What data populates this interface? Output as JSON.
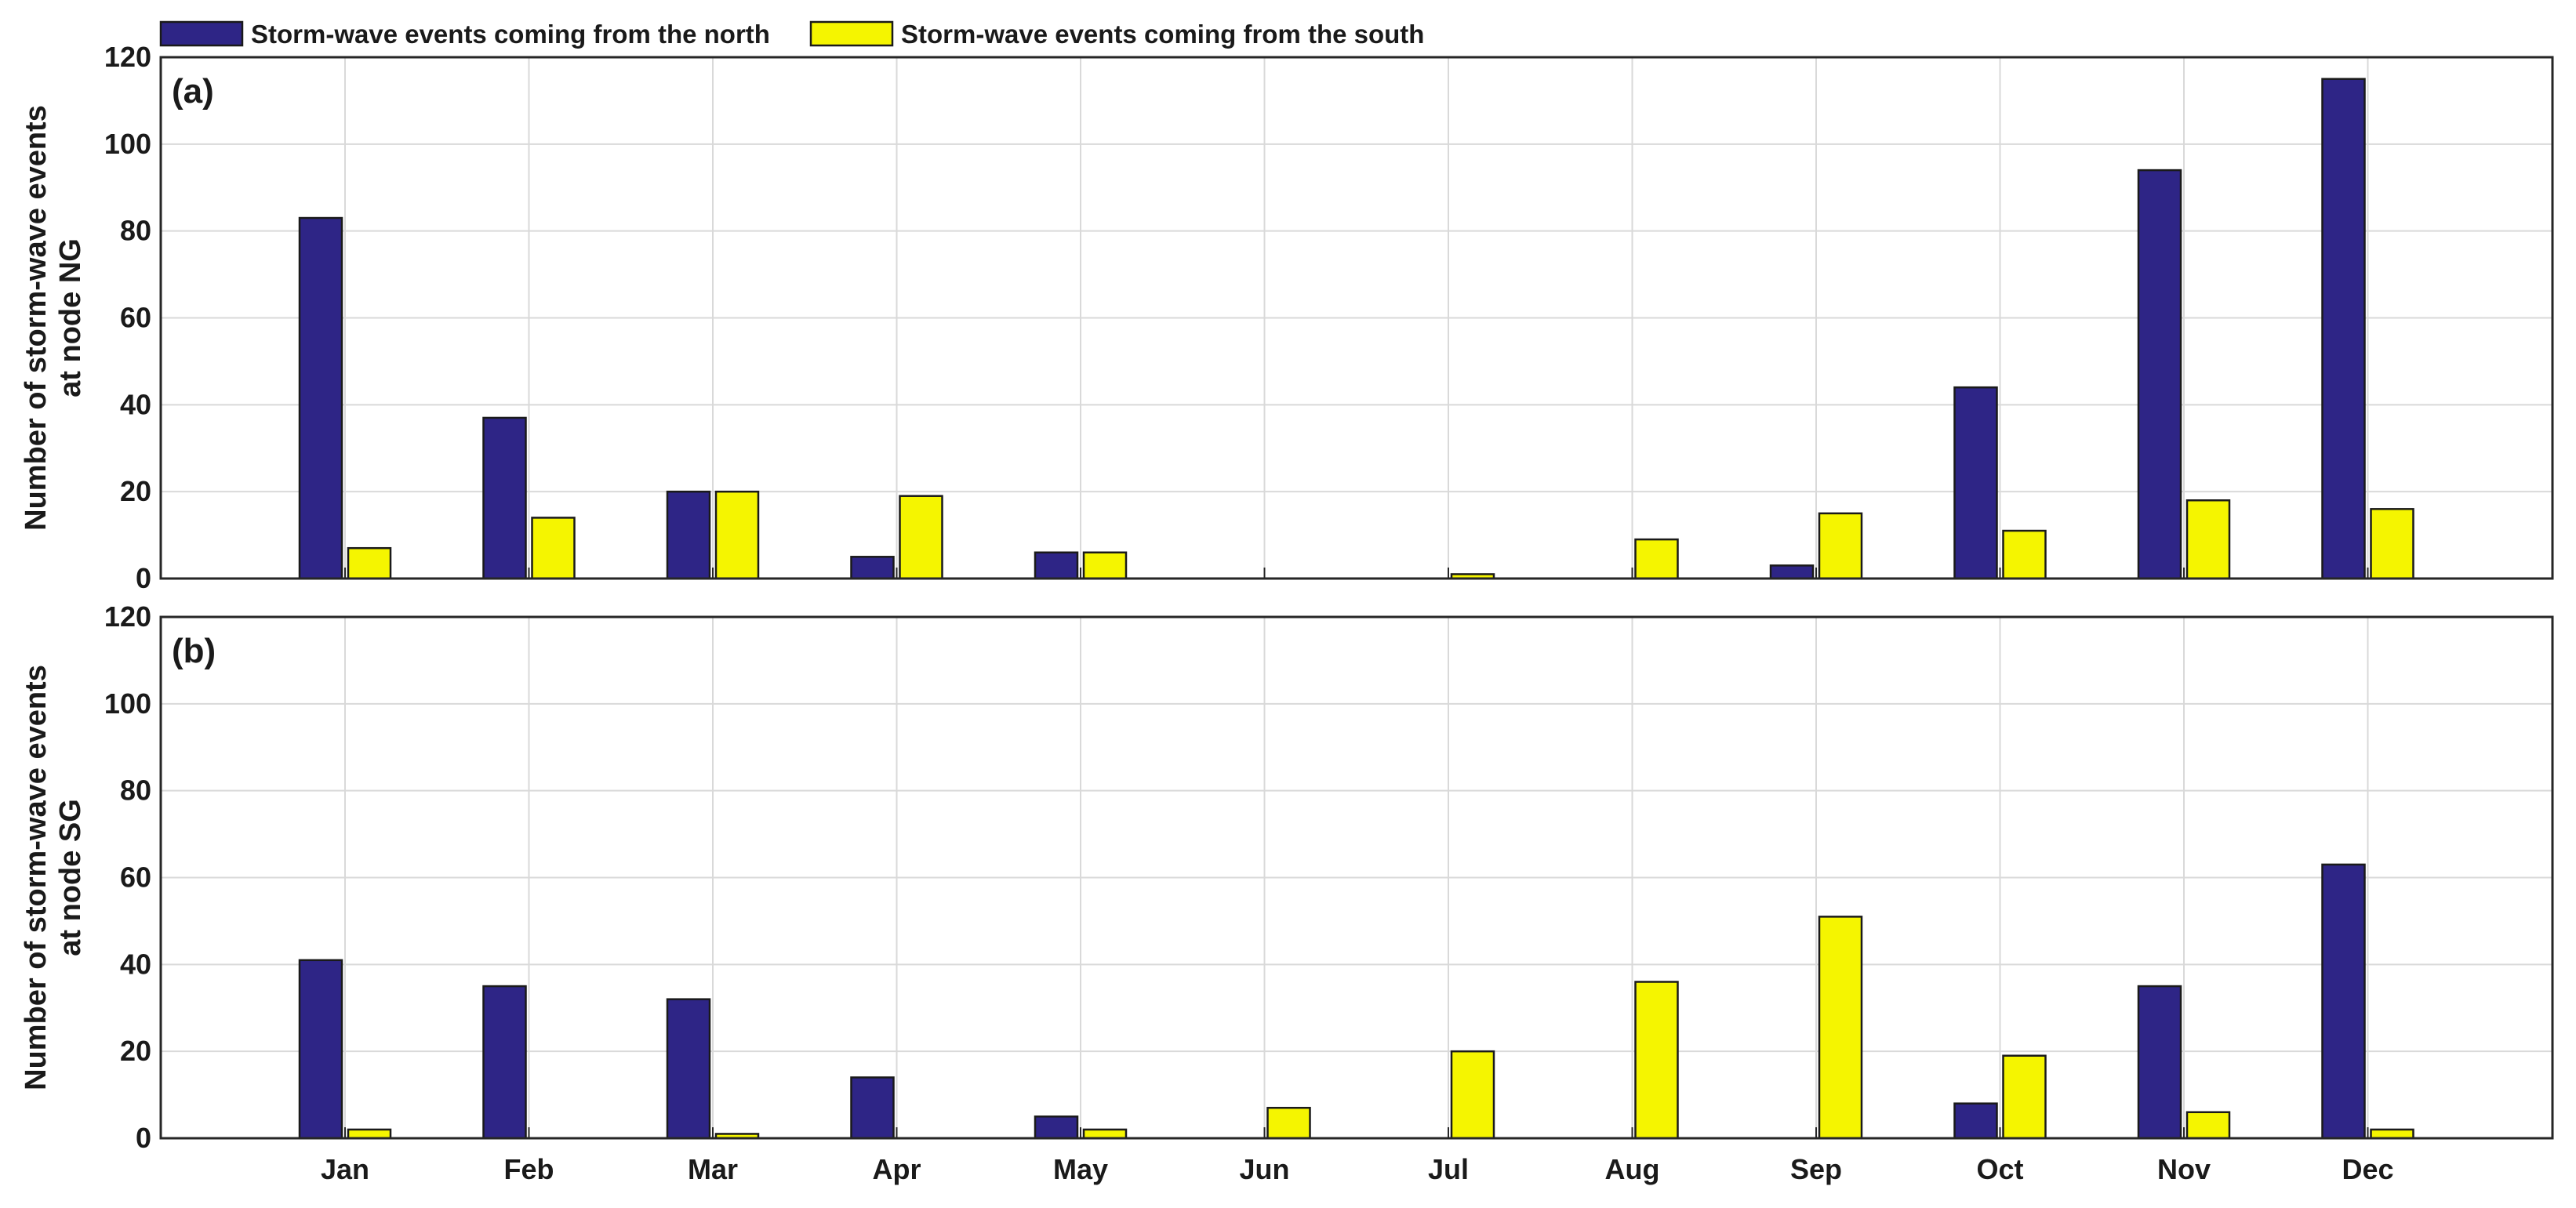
{
  "legend": [
    {
      "label": "Storm-wave events coming from the north",
      "color": "#2E2586"
    },
    {
      "label": "Storm-wave events coming from the south",
      "color": "#F5F500"
    }
  ],
  "chart_data": [
    {
      "type": "bar",
      "panel_label": "(a)",
      "ylabel": [
        "Number of storm-wave events",
        "at node NG"
      ],
      "categories": [
        "Jan",
        "Feb",
        "Mar",
        "Apr",
        "May",
        "Jun",
        "Jul",
        "Aug",
        "Sep",
        "Oct",
        "Nov",
        "Dec"
      ],
      "ylim": [
        0,
        120
      ],
      "yticks": [
        0,
        20,
        40,
        60,
        80,
        100,
        120
      ],
      "grid": true,
      "series": [
        {
          "name": "Storm-wave events coming from the north",
          "color": "#2E2586",
          "values": [
            83,
            37,
            20,
            5,
            6,
            0,
            0,
            0,
            3,
            44,
            94,
            115
          ]
        },
        {
          "name": "Storm-wave events coming from the south",
          "color": "#F5F500",
          "values": [
            7,
            14,
            20,
            19,
            6,
            0,
            1,
            9,
            15,
            11,
            18,
            16
          ]
        }
      ]
    },
    {
      "type": "bar",
      "panel_label": "(b)",
      "ylabel": [
        "Number of storm-wave events",
        "at node SG"
      ],
      "categories": [
        "Jan",
        "Feb",
        "Mar",
        "Apr",
        "May",
        "Jun",
        "Jul",
        "Aug",
        "Sep",
        "Oct",
        "Nov",
        "Dec"
      ],
      "ylim": [
        0,
        120
      ],
      "yticks": [
        0,
        20,
        40,
        60,
        80,
        100,
        120
      ],
      "grid": true,
      "series": [
        {
          "name": "Storm-wave events coming from the north",
          "color": "#2E2586",
          "values": [
            41,
            35,
            32,
            14,
            5,
            0,
            0,
            0,
            0,
            8,
            35,
            63
          ]
        },
        {
          "name": "Storm-wave events coming from the south",
          "color": "#F5F500",
          "values": [
            2,
            0,
            1,
            0,
            2,
            7,
            20,
            36,
            51,
            19,
            6,
            2
          ]
        }
      ]
    }
  ]
}
